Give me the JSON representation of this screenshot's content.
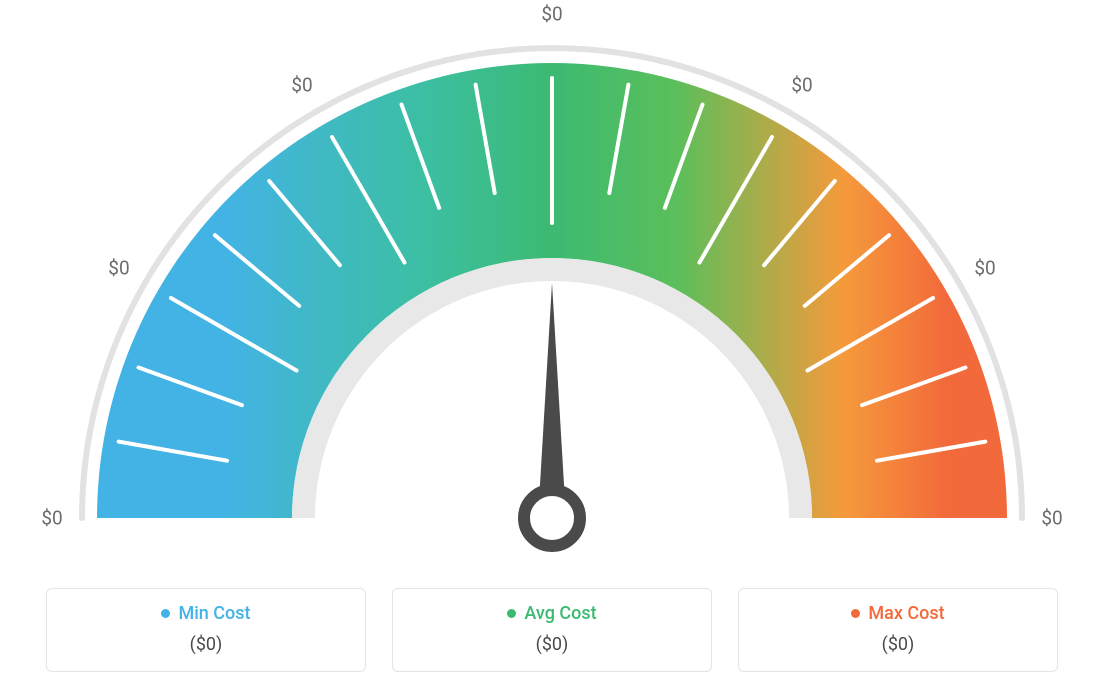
{
  "gauge": {
    "type": "gauge",
    "tick_labels": [
      "$0",
      "$0",
      "$0",
      "$0",
      "$0",
      "$0",
      "$0"
    ],
    "tick_label_color": "#6c6c6c",
    "tick_label_fontsize": 19,
    "outer_radius": 455,
    "inner_radius": 260,
    "ring_radius": 470,
    "ring_stroke": "#e2e2e2",
    "ring_stroke_width": 6,
    "center_cutout_color": "#e8e8e8",
    "minor_tick_color": "#ffffff",
    "colors": {
      "min": "#43b3e6",
      "avg": "#3cba72",
      "max": "#f26a3b"
    },
    "needle_angle_deg": 90,
    "needle_color": "#4a4a4a",
    "background_color": "#ffffff"
  },
  "legend": {
    "items": [
      {
        "key": "min",
        "label": "Min Cost",
        "value": "($0)",
        "color": "#43b3e6"
      },
      {
        "key": "avg",
        "label": "Avg Cost",
        "value": "($0)",
        "color": "#3cba72"
      },
      {
        "key": "max",
        "label": "Max Cost",
        "value": "($0)",
        "color": "#f26a3b"
      }
    ],
    "border_color": "#e4e4e4",
    "value_color": "#4a4a4a"
  }
}
